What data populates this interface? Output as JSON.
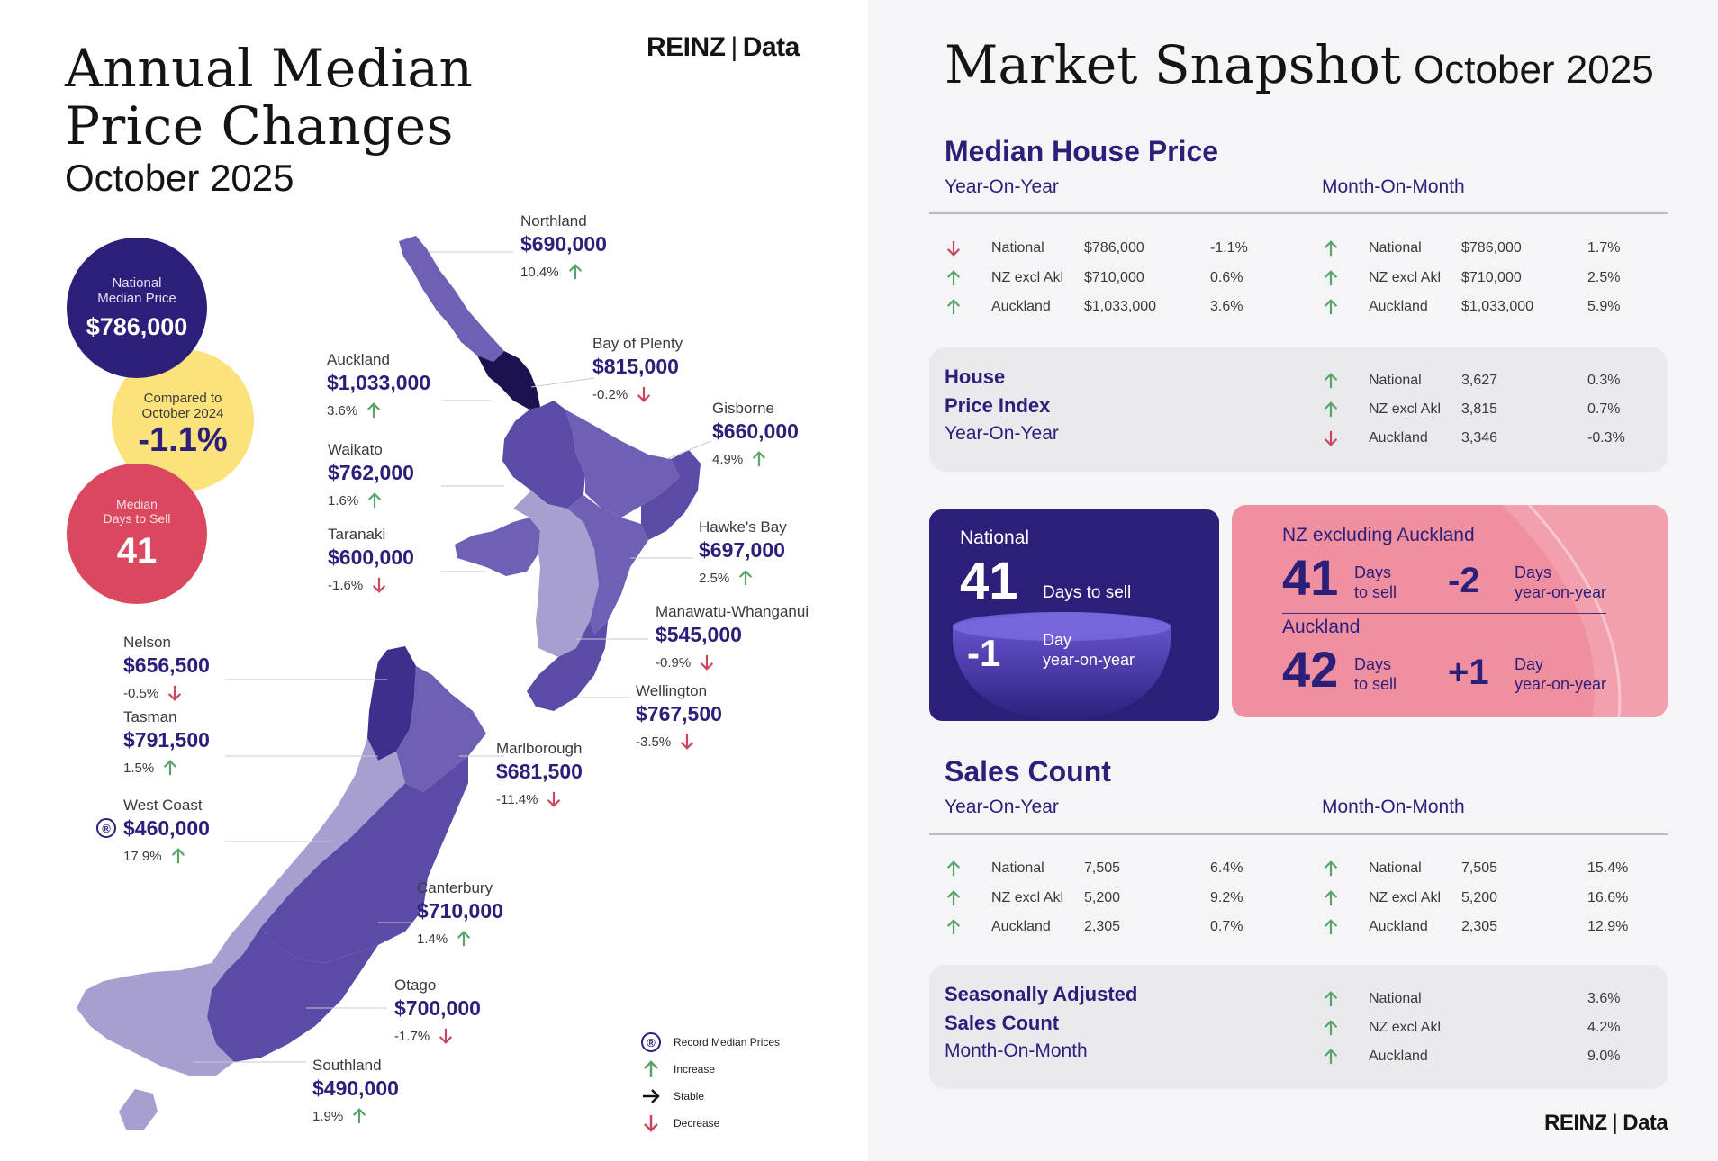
{
  "left": {
    "title_line1": "Annual Median",
    "title_line2": "Price Changes",
    "subtitle": "October 2025",
    "logo_reinz": "REINZ",
    "logo_sep": "|",
    "logo_data": "Data",
    "national_circle": {
      "label_line1": "National",
      "label_line2": "Median Price",
      "value": "$786,000"
    },
    "compared_circle": {
      "label_line1": "Compared to",
      "label_line2": "October 2024",
      "value": "-1.1%"
    },
    "days_circle": {
      "label_line1": "Median",
      "label_line2": "Days to Sell",
      "value": "41"
    },
    "regions": [
      {
        "name": "Northland",
        "price": "$690,000",
        "change": "10.4%",
        "dir": "up"
      },
      {
        "name": "Bay of Plenty",
        "price": "$815,000",
        "change": "-0.2%",
        "dir": "down"
      },
      {
        "name": "Auckland",
        "price": "$1,033,000",
        "change": "3.6%",
        "dir": "up"
      },
      {
        "name": "Gisborne",
        "price": "$660,000",
        "change": "4.9%",
        "dir": "up"
      },
      {
        "name": "Waikato",
        "price": "$762,000",
        "change": "1.6%",
        "dir": "up"
      },
      {
        "name": "Hawke's Bay",
        "price": "$697,000",
        "change": "2.5%",
        "dir": "up"
      },
      {
        "name": "Taranaki",
        "price": "$600,000",
        "change": "-1.6%",
        "dir": "down"
      },
      {
        "name": "Manawatu-Whanganui",
        "price": "$545,000",
        "change": "-0.9%",
        "dir": "down"
      },
      {
        "name": "Nelson",
        "price": "$656,500",
        "change": "-0.5%",
        "dir": "down"
      },
      {
        "name": "Wellington",
        "price": "$767,500",
        "change": "-3.5%",
        "dir": "down"
      },
      {
        "name": "Tasman",
        "price": "$791,500",
        "change": "1.5%",
        "dir": "up"
      },
      {
        "name": "Marlborough",
        "price": "$681,500",
        "change": "-11.4%",
        "dir": "down"
      },
      {
        "name": "West Coast",
        "price": "$460,000",
        "change": "17.9%",
        "dir": "up",
        "record": true
      },
      {
        "name": "Canterbury",
        "price": "$710,000",
        "change": "1.4%",
        "dir": "up"
      },
      {
        "name": "Otago",
        "price": "$700,000",
        "change": "-1.7%",
        "dir": "down"
      },
      {
        "name": "Southland",
        "price": "$490,000",
        "change": "1.9%",
        "dir": "up"
      }
    ],
    "legend": {
      "record_symbol": "®",
      "record": "Record Median Prices",
      "increase": "Increase",
      "stable": "Stable",
      "decrease": "Decrease"
    }
  },
  "right": {
    "title": "Market Snapshot",
    "subtitle": "October 2025",
    "median_house_price": {
      "heading": "Median House Price",
      "yoy_label": "Year-On-Year",
      "mom_label": "Month-On-Month",
      "yoy": [
        {
          "region": "National",
          "value": "$786,000",
          "change": "-1.1%",
          "dir": "down"
        },
        {
          "region": "NZ excl Akl",
          "value": "$710,000",
          "change": "0.6%",
          "dir": "up"
        },
        {
          "region": "Auckland",
          "value": "$1,033,000",
          "change": "3.6%",
          "dir": "up"
        }
      ],
      "mom": [
        {
          "region": "National",
          "value": "$786,000",
          "change": "1.7%",
          "dir": "up"
        },
        {
          "region": "NZ excl Akl",
          "value": "$710,000",
          "change": "2.5%",
          "dir": "up"
        },
        {
          "region": "Auckland",
          "value": "$1,033,000",
          "change": "5.9%",
          "dir": "up"
        }
      ]
    },
    "house_price_index": {
      "line1": "House",
      "line2": "Price Index",
      "line3": "Year-On-Year",
      "rows": [
        {
          "region": "National",
          "value": "3,627",
          "change": "0.3%",
          "dir": "up"
        },
        {
          "region": "NZ excl Akl",
          "value": "3,815",
          "change": "0.7%",
          "dir": "up"
        },
        {
          "region": "Auckland",
          "value": "3,346",
          "change": "-0.3%",
          "dir": "down"
        }
      ]
    },
    "days_national": {
      "label": "National",
      "days": "41",
      "days_label": "Days to sell",
      "yoy": "-1",
      "yoy_label1": "Day",
      "yoy_label2": "year-on-year"
    },
    "days_regions": {
      "nz_label": "NZ excluding Auckland",
      "nz_days": "41",
      "nz_days_l1": "Days",
      "nz_days_l2": "to sell",
      "nz_yoy": "-2",
      "nz_yoy_l1": "Days",
      "nz_yoy_l2": "year-on-year",
      "akl_label": "Auckland",
      "akl_days": "42",
      "akl_days_l1": "Days",
      "akl_days_l2": "to sell",
      "akl_yoy": "+1",
      "akl_yoy_l1": "Day",
      "akl_yoy_l2": "year-on-year"
    },
    "sales_count": {
      "heading": "Sales Count",
      "yoy_label": "Year-On-Year",
      "mom_label": "Month-On-Month",
      "yoy": [
        {
          "region": "National",
          "value": "7,505",
          "change": "6.4%",
          "dir": "up"
        },
        {
          "region": "NZ excl Akl",
          "value": "5,200",
          "change": "9.2%",
          "dir": "up"
        },
        {
          "region": "Auckland",
          "value": "2,305",
          "change": "0.7%",
          "dir": "up"
        }
      ],
      "mom": [
        {
          "region": "National",
          "value": "7,505",
          "change": "15.4%",
          "dir": "up"
        },
        {
          "region": "NZ excl Akl",
          "value": "5,200",
          "change": "16.6%",
          "dir": "up"
        },
        {
          "region": "Auckland",
          "value": "2,305",
          "change": "12.9%",
          "dir": "up"
        }
      ]
    },
    "seasonal": {
      "line1": "Seasonally Adjusted",
      "line2": "Sales Count",
      "line3": "Month-On-Month",
      "rows": [
        {
          "region": "National",
          "value": "",
          "change": "3.6%",
          "dir": "up"
        },
        {
          "region": "NZ excl Akl",
          "value": "",
          "change": "4.2%",
          "dir": "up"
        },
        {
          "region": "Auckland",
          "value": "",
          "change": "9.0%",
          "dir": "up"
        }
      ]
    },
    "logo_reinz": "REINZ",
    "logo_sep": "|",
    "logo_data": "Data"
  },
  "colors": {
    "up": "#5aa36a",
    "down": "#c9475e",
    "navy": "#2c1f7a",
    "map_dark": "#5b4aa6",
    "map_mid": "#6f5fb5",
    "map_light": "#a79fd0",
    "map_auckland": "#1c1250"
  },
  "chart_data": {
    "type": "table",
    "title": "Annual Median Price Changes October 2025",
    "categories": [
      "Northland",
      "Bay of Plenty",
      "Auckland",
      "Gisborne",
      "Waikato",
      "Hawke's Bay",
      "Taranaki",
      "Manawatu-Whanganui",
      "Nelson",
      "Wellington",
      "Tasman",
      "Marlborough",
      "West Coast",
      "Canterbury",
      "Otago",
      "Southland"
    ],
    "series": [
      {
        "name": "Median Price ($)",
        "values": [
          690000,
          815000,
          1033000,
          660000,
          762000,
          697000,
          600000,
          545000,
          656500,
          767500,
          791500,
          681500,
          460000,
          710000,
          700000,
          490000
        ]
      },
      {
        "name": "Annual Change (%)",
        "values": [
          10.4,
          -0.2,
          3.6,
          4.9,
          1.6,
          2.5,
          -1.6,
          -0.9,
          -0.5,
          -3.5,
          1.5,
          -11.4,
          17.9,
          1.4,
          -1.7,
          1.9
        ]
      }
    ]
  }
}
